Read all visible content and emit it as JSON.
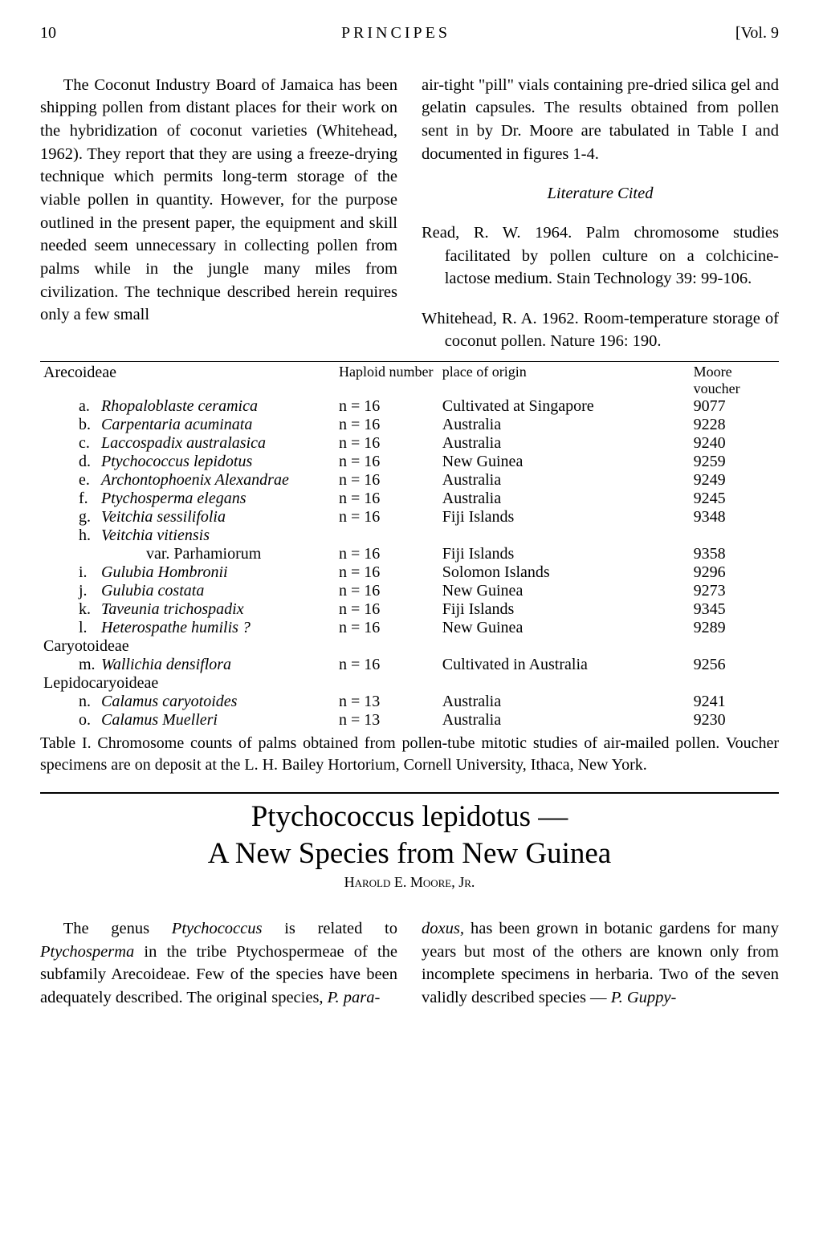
{
  "header": {
    "page_no": "10",
    "journal": "PRINCIPES",
    "vol": "[Vol. 9"
  },
  "col_left_p1": "The Coconut Industry Board of Jamaica has been shipping pollen from distant places for their work on the hybridization of coconut varieties (Whitehead, 1962). They report that they are using a freeze-drying technique which permits long-term storage of the viable pollen in quantity. However, for the purpose outlined in the present paper, the equipment and skill needed seem unnecessary in collecting pollen from palms while in the jungle many miles from civilization. The technique described herein requires only a few small",
  "col_right_p1": "air-tight \"pill\" vials containing pre-dried silica gel and gelatin capsules. The results obtained from pollen sent in by Dr. Moore are tabulated in Table I and documented in figures 1-4.",
  "lit_cited": "Literature Cited",
  "ref1": "Read, R. W. 1964. Palm chromosome studies facilitated by pollen culture on a colchicine-lactose medium. Stain Technology 39: 99-106.",
  "ref2": "Whitehead, R. A. 1962. Room-temperature storage of coconut pollen. Nature 196: 190.",
  "table": {
    "headers": {
      "species_group": "Arecoideae",
      "haploid": "Haploid number",
      "origin": "place of origin",
      "voucher": "Moore voucher"
    },
    "groups": [
      {
        "name": "Arecoideae",
        "rows": [
          {
            "letter": "a.",
            "name": "Rhopaloblaste ceramica",
            "haploid": "n = 16",
            "origin": "Cultivated at Singapore",
            "voucher": "9077"
          },
          {
            "letter": "b.",
            "name": "Carpentaria acuminata",
            "haploid": "n = 16",
            "origin": "Australia",
            "voucher": "9228"
          },
          {
            "letter": "c.",
            "name": "Laccospadix australasica",
            "haploid": "n = 16",
            "origin": "Australia",
            "voucher": "9240"
          },
          {
            "letter": "d.",
            "name": "Ptychococcus lepidotus",
            "haploid": "n = 16",
            "origin": "New Guinea",
            "voucher": "9259"
          },
          {
            "letter": "e.",
            "name": "Archontophoenix Alexandrae",
            "haploid": "n = 16",
            "origin": "Australia",
            "voucher": "9249"
          },
          {
            "letter": "f.",
            "name": "Ptychosperma elegans",
            "haploid": "n = 16",
            "origin": "Australia",
            "voucher": "9245"
          },
          {
            "letter": "g.",
            "name": "Veitchia sessilifolia",
            "haploid": "n = 16",
            "origin": "Fiji Islands",
            "voucher": "9348"
          },
          {
            "letter": "h.",
            "name": "Veitchia vitiensis",
            "haploid": "",
            "origin": "",
            "voucher": ""
          },
          {
            "letter": "",
            "var": "var. Parhamiorum",
            "haploid": "n = 16",
            "origin": "Fiji Islands",
            "voucher": "9358"
          },
          {
            "letter": "i.",
            "name": "Gulubia Hombronii",
            "haploid": "n = 16",
            "origin": "Solomon Islands",
            "voucher": "9296"
          },
          {
            "letter": "j.",
            "name": "Gulubia costata",
            "haploid": "n = 16",
            "origin": "New Guinea",
            "voucher": "9273"
          },
          {
            "letter": "k.",
            "name": "Taveunia trichospadix",
            "haploid": "n = 16",
            "origin": "Fiji Islands",
            "voucher": "9345"
          },
          {
            "letter": "l.",
            "name": "Heterospathe humilis ?",
            "haploid": "n = 16",
            "origin": "New Guinea",
            "voucher": "9289"
          }
        ]
      },
      {
        "name": "Caryotoideae",
        "rows": [
          {
            "letter": "m.",
            "name": "Wallichia densiflora",
            "haploid": "n = 16",
            "origin": "Cultivated in Australia",
            "voucher": "9256"
          }
        ]
      },
      {
        "name": "Lepidocaryoideae",
        "rows": [
          {
            "letter": "n.",
            "name": "Calamus caryotoides",
            "haploid": "n = 13",
            "origin": "Australia",
            "voucher": "9241"
          },
          {
            "letter": "o.",
            "name": "Calamus Muelleri",
            "haploid": "n = 13",
            "origin": "Australia",
            "voucher": "9230"
          }
        ]
      }
    ],
    "caption": "Table I. Chromosome counts of palms obtained from pollen-tube mitotic studies of air-mailed pollen. Voucher specimens are on deposit at the L. H. Bailey Hortorium, Cornell University, Ithaca, New York."
  },
  "article_title_l1": "Ptychococcus lepidotus —",
  "article_title_l2": "A New Species from New Guinea",
  "byline": "Harold E. Moore, Jr.",
  "art_left_html": "The genus <i>Ptychococcus</i> is related to <i>Ptychosperma</i> in the tribe Ptychospermeae of the subfamily Arecoideae. Few of the species have been adequately described. The original species, <i>P. para-</i>",
  "art_right_html": "<i>doxus,</i> has been grown in botanic gardens for many years but most of the others are known only from incomplete specimens in herbaria. Two of the seven validly described species — <i>P. Guppy-</i>"
}
